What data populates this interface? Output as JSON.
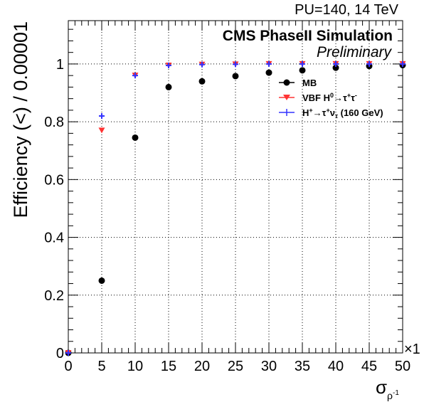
{
  "header": {
    "pu_energy": "PU=140, 14 TeV",
    "collab": "CMS PhaseII Simulation",
    "status": "Preliminary"
  },
  "axes": {
    "ylabel": "Efficiency (<) / 0.00001",
    "xlabel_base": "σ",
    "xlabel_sub": "ρ",
    "xlabel_sup": "-1",
    "x_multiplier": "×1"
  },
  "legend": {
    "mb": "MB",
    "vbf_pre": "VBF H",
    "vbf_sup": "0",
    "vbf_post": "→τ",
    "vbf_sup2": "+",
    "vbf_tail": "τ",
    "vbf_sup3": "-",
    "hp_pre": "H",
    "hp_sup": "+",
    "hp_mid": "→τ",
    "hp_sup2": "+",
    "hp_nu": "ν",
    "hp_sub": "τ",
    "hp_tail": " (160 GeV)"
  },
  "colors": {
    "mb": "#000000",
    "vbf": "#ff3333",
    "hplus": "#3333ff"
  },
  "chart_data": {
    "type": "scatter",
    "xlim": [
      0,
      50
    ],
    "ylim": [
      0,
      1.15
    ],
    "x_ticks": [
      0,
      5,
      10,
      15,
      20,
      25,
      30,
      35,
      40,
      45,
      50
    ],
    "x_tick_labels": [
      "0",
      "5",
      "10",
      "15",
      "20",
      "25",
      "30",
      "35",
      "40",
      "45",
      "50"
    ],
    "y_ticks": [
      0,
      0.2,
      0.4,
      0.6,
      0.8,
      1
    ],
    "y_tick_labels": [
      "0",
      "0.2",
      "0.4",
      "0.6",
      "0.8",
      "1"
    ],
    "grid": true,
    "legend_position": "top-right",
    "series": [
      {
        "name": "MB",
        "marker": "circle",
        "x": [
          0,
          5,
          10,
          15,
          20,
          25,
          30,
          35,
          40,
          45,
          50
        ],
        "y": [
          0.0,
          0.25,
          0.745,
          0.92,
          0.94,
          0.958,
          0.97,
          0.978,
          0.987,
          0.993,
          0.996
        ]
      },
      {
        "name": "VBF H0→τ+τ-",
        "marker": "triangle-down",
        "x": [
          0,
          5,
          10,
          15,
          20,
          25,
          30,
          35,
          40,
          45,
          50
        ],
        "y": [
          0.0,
          0.77,
          0.96,
          0.995,
          0.998,
          0.999,
          1.0,
          1.0,
          1.0,
          1.0,
          1.0
        ]
      },
      {
        "name": "H+→τ+ντ (160 GeV)",
        "marker": "cross",
        "x": [
          0,
          5,
          10,
          15,
          20,
          25,
          30,
          35,
          40,
          45,
          50
        ],
        "y": [
          0.0,
          0.82,
          0.96,
          0.995,
          0.998,
          0.999,
          1.0,
          1.0,
          1.0,
          1.0,
          1.0
        ]
      }
    ]
  }
}
